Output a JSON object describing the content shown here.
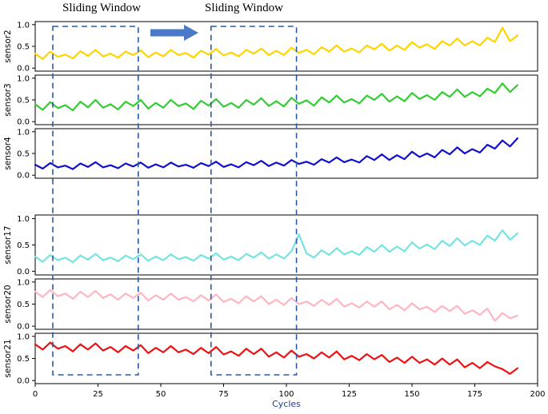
{
  "annotations": {
    "window_labels": [
      "Sliding Window",
      "Sliding Window"
    ],
    "window_box_color": "#2b5aa0",
    "arrow_color": "#4b79c9",
    "arrow_icon": "right-arrow"
  },
  "x_axis": {
    "label": "Cycles",
    "label_color": "#203a9a",
    "ticks": [
      0,
      25,
      50,
      75,
      100,
      125,
      150,
      175,
      200
    ],
    "lim": [
      0,
      200
    ]
  },
  "y_axis": {
    "ticks": [
      0,
      0.5,
      1
    ],
    "lim": [
      0,
      1
    ]
  },
  "windows": [
    {
      "x_start": 7,
      "x_end": 41
    },
    {
      "x_start": 70,
      "x_end": 104
    }
  ],
  "chart_data": [
    {
      "type": "line",
      "name": "sensor2",
      "color": "#ffd400",
      "x_start": 0,
      "x_step": 3,
      "ylim": [
        0,
        1
      ],
      "values": [
        0.33,
        0.21,
        0.38,
        0.26,
        0.31,
        0.22,
        0.39,
        0.28,
        0.42,
        0.27,
        0.33,
        0.24,
        0.38,
        0.3,
        0.41,
        0.25,
        0.36,
        0.27,
        0.42,
        0.3,
        0.35,
        0.24,
        0.4,
        0.31,
        0.44,
        0.29,
        0.36,
        0.27,
        0.42,
        0.33,
        0.45,
        0.3,
        0.4,
        0.3,
        0.47,
        0.35,
        0.42,
        0.32,
        0.48,
        0.38,
        0.52,
        0.38,
        0.45,
        0.36,
        0.52,
        0.43,
        0.56,
        0.4,
        0.52,
        0.42,
        0.6,
        0.47,
        0.55,
        0.44,
        0.62,
        0.52,
        0.68,
        0.52,
        0.62,
        0.52,
        0.7,
        0.6,
        0.93,
        0.62,
        0.75
      ]
    },
    {
      "type": "line",
      "name": "sensor3",
      "color": "#32cd32",
      "x_start": 0,
      "x_step": 3,
      "ylim": [
        0,
        1
      ],
      "values": [
        0.4,
        0.27,
        0.45,
        0.31,
        0.38,
        0.26,
        0.46,
        0.33,
        0.5,
        0.32,
        0.4,
        0.28,
        0.46,
        0.36,
        0.5,
        0.3,
        0.43,
        0.32,
        0.5,
        0.36,
        0.42,
        0.29,
        0.48,
        0.37,
        0.52,
        0.34,
        0.43,
        0.32,
        0.5,
        0.39,
        0.54,
        0.36,
        0.47,
        0.35,
        0.55,
        0.41,
        0.49,
        0.37,
        0.56,
        0.44,
        0.6,
        0.44,
        0.52,
        0.42,
        0.6,
        0.5,
        0.64,
        0.46,
        0.58,
        0.47,
        0.66,
        0.52,
        0.61,
        0.5,
        0.68,
        0.57,
        0.74,
        0.57,
        0.68,
        0.58,
        0.76,
        0.66,
        0.88,
        0.68,
        0.84
      ]
    },
    {
      "type": "line",
      "name": "sensor4",
      "color": "#1010cd",
      "x_start": 0,
      "x_step": 3,
      "ylim": [
        0,
        1
      ],
      "values": [
        0.24,
        0.15,
        0.28,
        0.18,
        0.22,
        0.14,
        0.27,
        0.19,
        0.3,
        0.18,
        0.23,
        0.16,
        0.27,
        0.2,
        0.29,
        0.17,
        0.25,
        0.18,
        0.29,
        0.2,
        0.24,
        0.17,
        0.28,
        0.21,
        0.31,
        0.19,
        0.25,
        0.18,
        0.3,
        0.23,
        0.33,
        0.21,
        0.29,
        0.22,
        0.35,
        0.26,
        0.31,
        0.24,
        0.37,
        0.29,
        0.41,
        0.3,
        0.36,
        0.29,
        0.44,
        0.35,
        0.48,
        0.35,
        0.46,
        0.37,
        0.54,
        0.42,
        0.5,
        0.41,
        0.58,
        0.48,
        0.64,
        0.5,
        0.6,
        0.52,
        0.7,
        0.61,
        0.8,
        0.66,
        0.85
      ]
    },
    {
      "type": "line",
      "name": "sensor17",
      "color": "#74e4e0",
      "x_start": 0,
      "x_step": 3,
      "ylim": [
        0,
        1
      ],
      "values": [
        0.28,
        0.18,
        0.31,
        0.21,
        0.26,
        0.17,
        0.3,
        0.22,
        0.33,
        0.21,
        0.26,
        0.19,
        0.3,
        0.23,
        0.32,
        0.2,
        0.28,
        0.21,
        0.32,
        0.23,
        0.27,
        0.2,
        0.31,
        0.24,
        0.34,
        0.22,
        0.28,
        0.21,
        0.33,
        0.26,
        0.36,
        0.24,
        0.32,
        0.24,
        0.38,
        0.7,
        0.34,
        0.26,
        0.4,
        0.31,
        0.44,
        0.32,
        0.38,
        0.31,
        0.46,
        0.37,
        0.5,
        0.37,
        0.47,
        0.38,
        0.55,
        0.43,
        0.51,
        0.42,
        0.58,
        0.48,
        0.63,
        0.49,
        0.58,
        0.5,
        0.68,
        0.58,
        0.78,
        0.6,
        0.72
      ]
    },
    {
      "type": "line",
      "name": "sensor20",
      "color": "#ffb6c1",
      "x_start": 0,
      "x_step": 3,
      "ylim": [
        0,
        1
      ],
      "values": [
        0.78,
        0.66,
        0.82,
        0.68,
        0.74,
        0.62,
        0.78,
        0.66,
        0.8,
        0.64,
        0.72,
        0.6,
        0.74,
        0.64,
        0.76,
        0.58,
        0.7,
        0.6,
        0.74,
        0.6,
        0.66,
        0.56,
        0.7,
        0.58,
        0.72,
        0.55,
        0.62,
        0.52,
        0.68,
        0.56,
        0.68,
        0.5,
        0.6,
        0.48,
        0.64,
        0.5,
        0.56,
        0.46,
        0.6,
        0.48,
        0.62,
        0.44,
        0.52,
        0.42,
        0.56,
        0.44,
        0.56,
        0.38,
        0.48,
        0.36,
        0.52,
        0.38,
        0.44,
        0.32,
        0.46,
        0.34,
        0.46,
        0.28,
        0.36,
        0.26,
        0.4,
        0.12,
        0.3,
        0.18,
        0.24
      ]
    },
    {
      "type": "line",
      "name": "sensor21",
      "color": "#ee1111",
      "x_start": 0,
      "x_step": 3,
      "ylim": [
        0,
        1
      ],
      "values": [
        0.82,
        0.7,
        0.86,
        0.72,
        0.78,
        0.66,
        0.82,
        0.7,
        0.84,
        0.68,
        0.76,
        0.64,
        0.78,
        0.68,
        0.8,
        0.62,
        0.74,
        0.64,
        0.78,
        0.64,
        0.7,
        0.6,
        0.74,
        0.62,
        0.76,
        0.59,
        0.66,
        0.56,
        0.72,
        0.6,
        0.72,
        0.54,
        0.64,
        0.52,
        0.68,
        0.54,
        0.6,
        0.5,
        0.64,
        0.52,
        0.66,
        0.48,
        0.56,
        0.46,
        0.6,
        0.48,
        0.58,
        0.42,
        0.52,
        0.4,
        0.54,
        0.4,
        0.48,
        0.36,
        0.5,
        0.36,
        0.48,
        0.3,
        0.4,
        0.28,
        0.42,
        0.32,
        0.26,
        0.15,
        0.28
      ]
    }
  ]
}
